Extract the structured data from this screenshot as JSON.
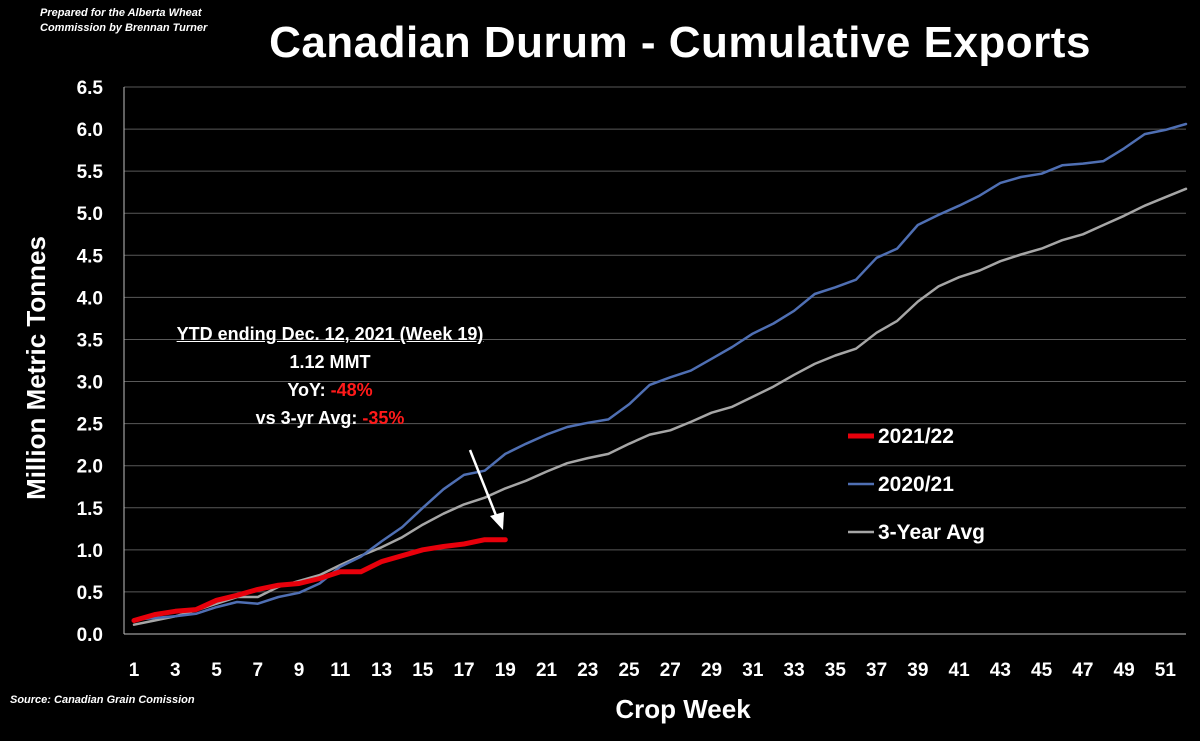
{
  "header": {
    "prepared_by": "Prepared for the Alberta Wheat Commission by Brennan Turner",
    "title": "Canadian Durum - Cumulative Exports",
    "source": "Source: Canadian Grain Comission"
  },
  "annotation": {
    "heading": "YTD ending Dec. 12, 2021 (Week 19)",
    "total": "1.12 MMT",
    "yoy_label": "YoY: ",
    "yoy_value": "-48%",
    "avg_label": "vs 3-yr Avg: ",
    "avg_value": "-35%"
  },
  "chart_data": {
    "type": "line",
    "title": "Canadian Durum - Cumulative Exports",
    "xlabel": "Crop Week",
    "ylabel": "Million Metric Tonnes",
    "xlim": [
      1,
      52
    ],
    "ylim": [
      0,
      6.5
    ],
    "x_ticks": [
      1,
      3,
      5,
      7,
      9,
      11,
      13,
      15,
      17,
      19,
      21,
      23,
      25,
      27,
      29,
      31,
      33,
      35,
      37,
      39,
      41,
      43,
      45,
      47,
      49,
      51
    ],
    "y_ticks": [
      0.0,
      0.5,
      1.0,
      1.5,
      2.0,
      2.5,
      3.0,
      3.5,
      4.0,
      4.5,
      5.0,
      5.5,
      6.0,
      6.5
    ],
    "grid": "horizontal",
    "legend_position": "right",
    "series": [
      {
        "name": "2021/22",
        "color": "#e8000b",
        "x": [
          1,
          2,
          3,
          4,
          5,
          6,
          7,
          8,
          9,
          10,
          11,
          12,
          13,
          14,
          15,
          16,
          17,
          18,
          19
        ],
        "values": [
          0.16,
          0.23,
          0.27,
          0.29,
          0.4,
          0.46,
          0.53,
          0.58,
          0.6,
          0.66,
          0.74,
          0.74,
          0.86,
          0.93,
          1.0,
          1.04,
          1.07,
          1.12,
          1.12
        ]
      },
      {
        "name": "2020/21",
        "color": "#4f6fb3",
        "x": [
          1,
          2,
          3,
          4,
          5,
          6,
          7,
          8,
          9,
          10,
          11,
          12,
          13,
          14,
          15,
          16,
          17,
          18,
          19,
          20,
          21,
          22,
          23,
          24,
          25,
          26,
          27,
          28,
          29,
          30,
          31,
          32,
          33,
          34,
          35,
          36,
          37,
          38,
          39,
          40,
          41,
          42,
          43,
          44,
          45,
          46,
          47,
          48,
          49,
          50,
          51,
          52
        ],
        "values": [
          0.17,
          0.19,
          0.21,
          0.24,
          0.32,
          0.38,
          0.36,
          0.44,
          0.49,
          0.6,
          0.8,
          0.92,
          1.1,
          1.27,
          1.5,
          1.72,
          1.89,
          1.94,
          2.14,
          2.26,
          2.37,
          2.46,
          2.51,
          2.55,
          2.73,
          2.96,
          3.05,
          3.13,
          3.27,
          3.41,
          3.57,
          3.69,
          3.84,
          4.04,
          4.12,
          4.21,
          4.47,
          4.58,
          4.86,
          4.98,
          5.09,
          5.21,
          5.36,
          5.43,
          5.47,
          5.57,
          5.59,
          5.62,
          5.77,
          5.94,
          5.99,
          6.06
        ]
      },
      {
        "name": "3-Year Avg",
        "color": "#a6a6a6",
        "x": [
          1,
          2,
          3,
          4,
          5,
          6,
          7,
          8,
          9,
          10,
          11,
          12,
          13,
          14,
          15,
          16,
          17,
          18,
          19,
          20,
          21,
          22,
          23,
          24,
          25,
          26,
          27,
          28,
          29,
          30,
          31,
          32,
          33,
          34,
          35,
          36,
          37,
          38,
          39,
          40,
          41,
          42,
          43,
          44,
          45,
          46,
          47,
          48,
          49,
          50,
          51,
          52
        ],
        "values": [
          0.11,
          0.16,
          0.21,
          0.28,
          0.36,
          0.44,
          0.44,
          0.56,
          0.63,
          0.7,
          0.82,
          0.93,
          1.03,
          1.15,
          1.3,
          1.43,
          1.54,
          1.62,
          1.73,
          1.82,
          1.93,
          2.03,
          2.09,
          2.14,
          2.26,
          2.37,
          2.42,
          2.52,
          2.63,
          2.7,
          2.82,
          2.94,
          3.08,
          3.21,
          3.31,
          3.39,
          3.58,
          3.72,
          3.95,
          4.13,
          4.24,
          4.32,
          4.43,
          4.51,
          4.58,
          4.68,
          4.75,
          4.86,
          4.97,
          5.09,
          5.19,
          5.29
        ]
      }
    ]
  }
}
